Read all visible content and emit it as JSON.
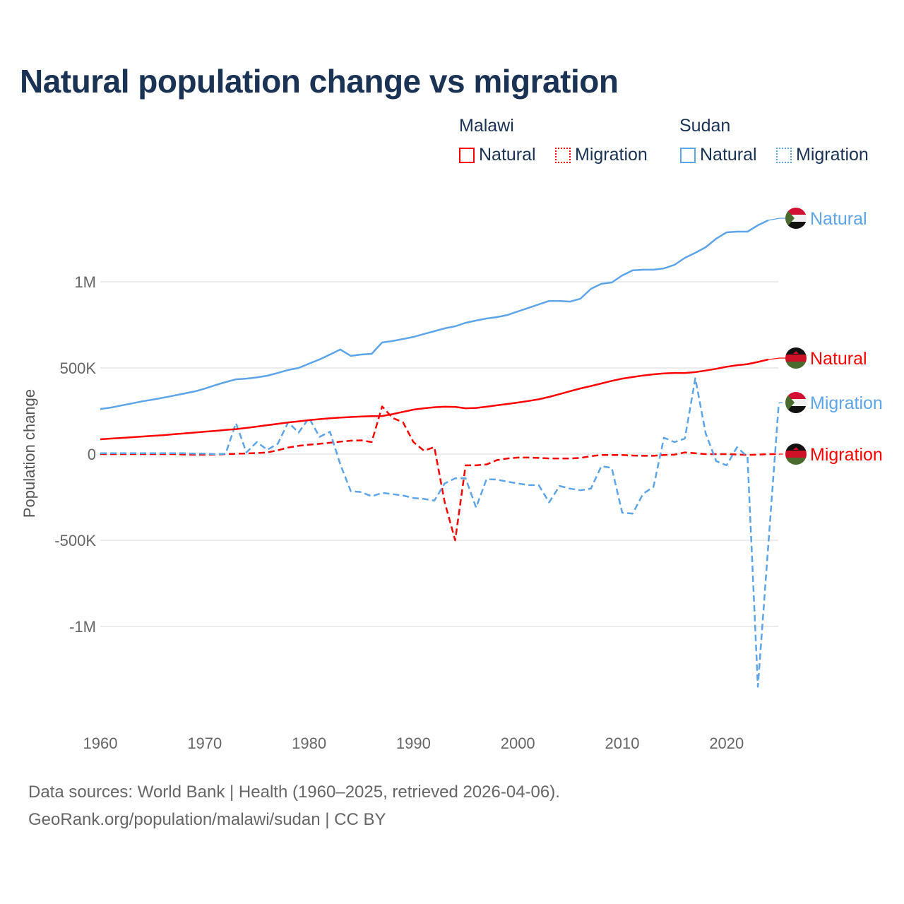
{
  "chart_data": {
    "type": "line",
    "title": "Natural population change vs migration",
    "xlabel": "",
    "ylabel": "Population change",
    "xlim": [
      1960,
      2025
    ],
    "ylim": [
      -1400000,
      1400000
    ],
    "x_ticks": [
      1960,
      1970,
      1980,
      1990,
      2000,
      2010,
      2020
    ],
    "x_tick_labels": [
      "1960",
      "1970",
      "1980",
      "1990",
      "2000",
      "2010",
      "2020"
    ],
    "y_ticks": [
      -1000000,
      -500000,
      0,
      500000,
      1000000
    ],
    "y_tick_labels": [
      "-1M",
      "-500K",
      "0",
      "500K",
      "1M"
    ],
    "grid": true,
    "legend": {
      "placement": "top-right",
      "groups": [
        {
          "title": "Malawi",
          "items": [
            "Natural",
            "Migration"
          ]
        },
        {
          "title": "Sudan",
          "items": [
            "Natural",
            "Migration"
          ]
        }
      ]
    },
    "series": [
      {
        "name": "Sudan Natural",
        "country": "Sudan",
        "kind": "Natural",
        "label": "Natural",
        "color": "#5da5e8",
        "dash": false,
        "start_year": 1960,
        "values": [
          262,
          270,
          282,
          294,
          306,
          316,
          327,
          339,
          351,
          363,
          380,
          400,
          418,
          434,
          438,
          445,
          455,
          471,
          488,
          500,
          525,
          549,
          578,
          607,
          570,
          578,
          582,
          648,
          656,
          668,
          680,
          697,
          713,
          730,
          742,
          762,
          775,
          787,
          795,
          807,
          828,
          848,
          869,
          889,
          889,
          885,
          902,
          959,
          988,
          996,
          1037,
          1066,
          1070,
          1070,
          1078,
          1098,
          1139,
          1168,
          1201,
          1250,
          1287,
          1291,
          1291,
          1328,
          1357
        ]
      },
      {
        "name": "Malawi Natural",
        "country": "Malawi",
        "kind": "Natural",
        "label": "Natural",
        "color": "#ff0000",
        "dash": false,
        "start_year": 1960,
        "values": [
          86,
          90,
          94,
          98,
          102,
          106,
          110,
          115,
          120,
          125,
          130,
          135,
          140,
          145,
          152,
          160,
          168,
          176,
          184,
          190,
          197,
          203,
          208,
          212,
          215,
          218,
          220,
          221,
          232,
          245,
          258,
          266,
          272,
          275,
          274,
          266,
          268,
          275,
          283,
          291,
          299,
          308,
          318,
          332,
          348,
          365,
          381,
          395,
          410,
          425,
          438,
          447,
          456,
          463,
          468,
          471,
          471,
          476,
          485,
          495,
          507,
          516,
          522,
          535,
          549
        ]
      },
      {
        "name": "Sudan Migration",
        "country": "Sudan",
        "kind": "Migration",
        "label": "Migration",
        "color": "#5da5e8",
        "dash": true,
        "start_year": 1960,
        "values": [
          5,
          5,
          5,
          5,
          5,
          5,
          5,
          5,
          5,
          3,
          3,
          0,
          2,
          180,
          10,
          70,
          25,
          60,
          185,
          125,
          210,
          100,
          130,
          -60,
          -215,
          -220,
          -245,
          -225,
          -232,
          -240,
          -255,
          -260,
          -270,
          -170,
          -140,
          -140,
          -310,
          -145,
          -148,
          -160,
          -170,
          -180,
          -180,
          -280,
          -185,
          -200,
          -210,
          -200,
          -70,
          -80,
          -340,
          -345,
          -230,
          -190,
          95,
          70,
          90,
          440,
          120,
          -40,
          -65,
          40,
          -15,
          -1350,
          -525,
          295
        ]
      },
      {
        "name": "Malawi Migration",
        "country": "Malawi",
        "kind": "Migration",
        "label": "Migration",
        "color": "#ff0000",
        "dash": true,
        "start_year": 1960,
        "values": [
          0,
          0,
          0,
          0,
          0,
          0,
          0,
          0,
          -2,
          -3,
          -3,
          -2,
          0,
          2,
          4,
          6,
          10,
          22,
          38,
          48,
          55,
          60,
          66,
          72,
          78,
          80,
          70,
          277,
          210,
          185,
          70,
          20,
          40,
          -280,
          -500,
          -65,
          -65,
          -60,
          -35,
          -25,
          -20,
          -20,
          -22,
          -25,
          -25,
          -25,
          -22,
          -12,
          -5,
          -5,
          -5,
          -8,
          -10,
          -10,
          -5,
          -3,
          10,
          5,
          0,
          0,
          0,
          -2,
          -5,
          -3,
          0,
          0
        ]
      }
    ],
    "end_labels_order": [
      "Sudan Natural",
      "Malawi Natural",
      "Sudan Migration",
      "Malawi Migration"
    ],
    "units_note": "values in thousands"
  },
  "legend_labels": {
    "malawi": "Malawi",
    "sudan": "Sudan",
    "natural": "Natural",
    "migration": "Migration"
  },
  "footer": {
    "line1": "Data sources: World Bank | Health (1960–2025, retrieved 2026-04-06).",
    "line2": "GeoRank.org/population/malawi/sudan | CC BY"
  },
  "colors": {
    "sudan": "#5da5e8",
    "malawi": "#ff0000",
    "title": "#1a3354"
  }
}
